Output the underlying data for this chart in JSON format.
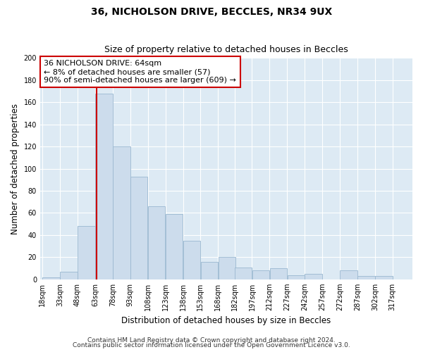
{
  "title": "36, NICHOLSON DRIVE, BECCLES, NR34 9UX",
  "subtitle": "Size of property relative to detached houses in Beccles",
  "xlabel": "Distribution of detached houses by size in Beccles",
  "ylabel": "Number of detached properties",
  "bin_labels": [
    "18sqm",
    "33sqm",
    "48sqm",
    "63sqm",
    "78sqm",
    "93sqm",
    "108sqm",
    "123sqm",
    "138sqm",
    "153sqm",
    "168sqm",
    "182sqm",
    "197sqm",
    "212sqm",
    "227sqm",
    "242sqm",
    "257sqm",
    "272sqm",
    "287sqm",
    "302sqm",
    "317sqm"
  ],
  "bin_edges": [
    18,
    33,
    48,
    63,
    78,
    93,
    108,
    123,
    138,
    153,
    168,
    182,
    197,
    212,
    227,
    242,
    257,
    272,
    287,
    302,
    317
  ],
  "bar_heights": [
    2,
    7,
    48,
    168,
    120,
    93,
    66,
    59,
    35,
    16,
    20,
    11,
    8,
    10,
    4,
    5,
    0,
    8,
    3,
    3
  ],
  "bar_color": "#ccdcec",
  "bar_edgecolor": "#9ab8d0",
  "reference_line_x": 64,
  "reference_line_color": "#cc0000",
  "annotation_text": "36 NICHOLSON DRIVE: 64sqm\n← 8% of detached houses are smaller (57)\n90% of semi-detached houses are larger (609) →",
  "annotation_box_color": "#ffffff",
  "annotation_box_edgecolor": "#cc0000",
  "ylim": [
    0,
    200
  ],
  "yticks": [
    0,
    20,
    40,
    60,
    80,
    100,
    120,
    140,
    160,
    180,
    200
  ],
  "footer_line1": "Contains HM Land Registry data © Crown copyright and database right 2024.",
  "footer_line2": "Contains public sector information licensed under the Open Government Licence v3.0.",
  "bg_color": "#ffffff",
  "plot_bg_color": "#ddeaf4",
  "grid_color": "#ffffff",
  "title_fontsize": 10,
  "subtitle_fontsize": 9,
  "axis_label_fontsize": 8.5,
  "tick_fontsize": 7,
  "annotation_fontsize": 8,
  "footer_fontsize": 6.5
}
